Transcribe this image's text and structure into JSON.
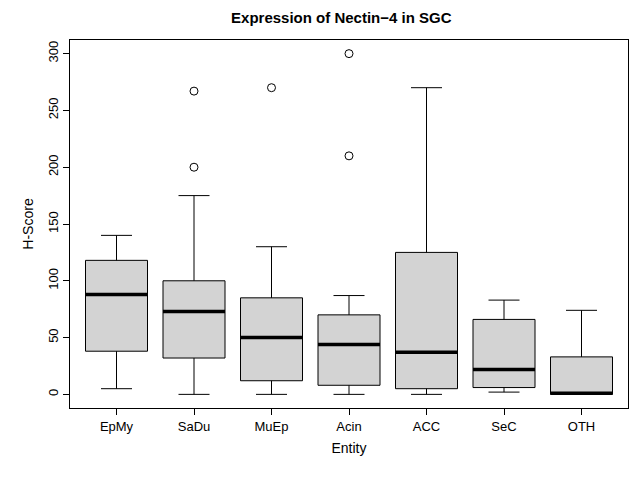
{
  "chart_data": {
    "type": "box",
    "title": "Expression of Nectin−4 in SGC",
    "x_label": "Entity",
    "y_label": "H-Score",
    "categories": [
      "EpMy",
      "SaDu",
      "MuEp",
      "Acin",
      "ACC",
      "SeC",
      "OTH"
    ],
    "lower": [
      5,
      0,
      0,
      0,
      0,
      2,
      0
    ],
    "q1": [
      38,
      32,
      12,
      8,
      5,
      6,
      0
    ],
    "median": [
      88,
      73,
      50,
      44,
      37,
      22,
      1
    ],
    "q3": [
      118,
      100,
      85,
      70,
      125,
      66,
      33
    ],
    "upper": [
      140,
      175,
      130,
      87,
      270,
      83,
      74
    ],
    "outliers": [
      [],
      [
        200,
        267
      ],
      [
        270
      ],
      [
        210,
        300
      ],
      [],
      [],
      []
    ],
    "color": "#d3d3d3",
    "ylim": [
      -12,
      312
    ],
    "yticks": [
      0,
      50,
      100,
      150,
      200,
      250,
      300
    ],
    "grid": false
  }
}
